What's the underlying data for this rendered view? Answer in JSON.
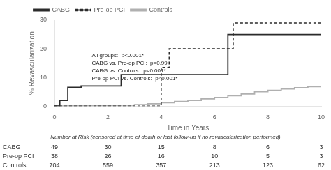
{
  "chart_data": {
    "type": "line",
    "xlabel": "Time in Years",
    "ylabel": "% Revascularization",
    "xlim": [
      0,
      10
    ],
    "ylim": [
      0,
      30
    ],
    "xticks": [
      0,
      2,
      4,
      6,
      8,
      10
    ],
    "yticks": [
      0,
      10,
      20,
      30
    ],
    "grid": false,
    "legend": "upper left",
    "series": [
      {
        "name": "CABG",
        "color": "#2b2b2b",
        "line_style": "solid",
        "x": [
          0,
          0.2,
          0.5,
          1.0,
          2.5,
          6.5,
          10
        ],
        "values": [
          0,
          2.0,
          6.5,
          7.0,
          11.0,
          25.0,
          25.0
        ]
      },
      {
        "name": "Pre-op PCI",
        "color": "#2b2b2b",
        "line_style": "dashed",
        "x": [
          0,
          3.0,
          4.0,
          4.3,
          6.7,
          10
        ],
        "values": [
          0,
          0,
          13.5,
          20.0,
          29.0,
          29.0
        ]
      },
      {
        "name": "Controls",
        "color": "#b0b0b0",
        "line_style": "solid",
        "x": [
          0,
          0.5,
          1.0,
          1.5,
          2.0,
          2.5,
          3.0,
          3.5,
          4.0,
          4.5,
          5.0,
          5.5,
          6.0,
          6.5,
          7.0,
          7.5,
          8.0,
          8.5,
          9.0,
          9.5,
          10.0
        ],
        "values": [
          0,
          0.05,
          0.1,
          0.15,
          0.2,
          0.3,
          0.5,
          0.8,
          1.2,
          1.6,
          2.0,
          2.5,
          3.0,
          3.6,
          4.2,
          5.0,
          5.5,
          6.0,
          6.4,
          6.8,
          7.2
        ]
      }
    ],
    "annotation": "All groups:  p<0.001*\nCABG vs. Pre-op PCI:  p=0.99\nCABG vs. Controls:  p<0.001*\nPre-op PCI vs. Controls:  p<0.001*",
    "table_title": "Number at Risk (censored at time of death or last follow-up if no revascularization performed)",
    "table_rows": [
      [
        "CABG",
        "49",
        "30",
        "15",
        "8",
        "6",
        "3"
      ],
      [
        "Pre-op PCI",
        "38",
        "26",
        "16",
        "10",
        "5",
        "3"
      ],
      [
        "Controls",
        "704",
        "559",
        "357",
        "213",
        "123",
        "62"
      ]
    ]
  }
}
